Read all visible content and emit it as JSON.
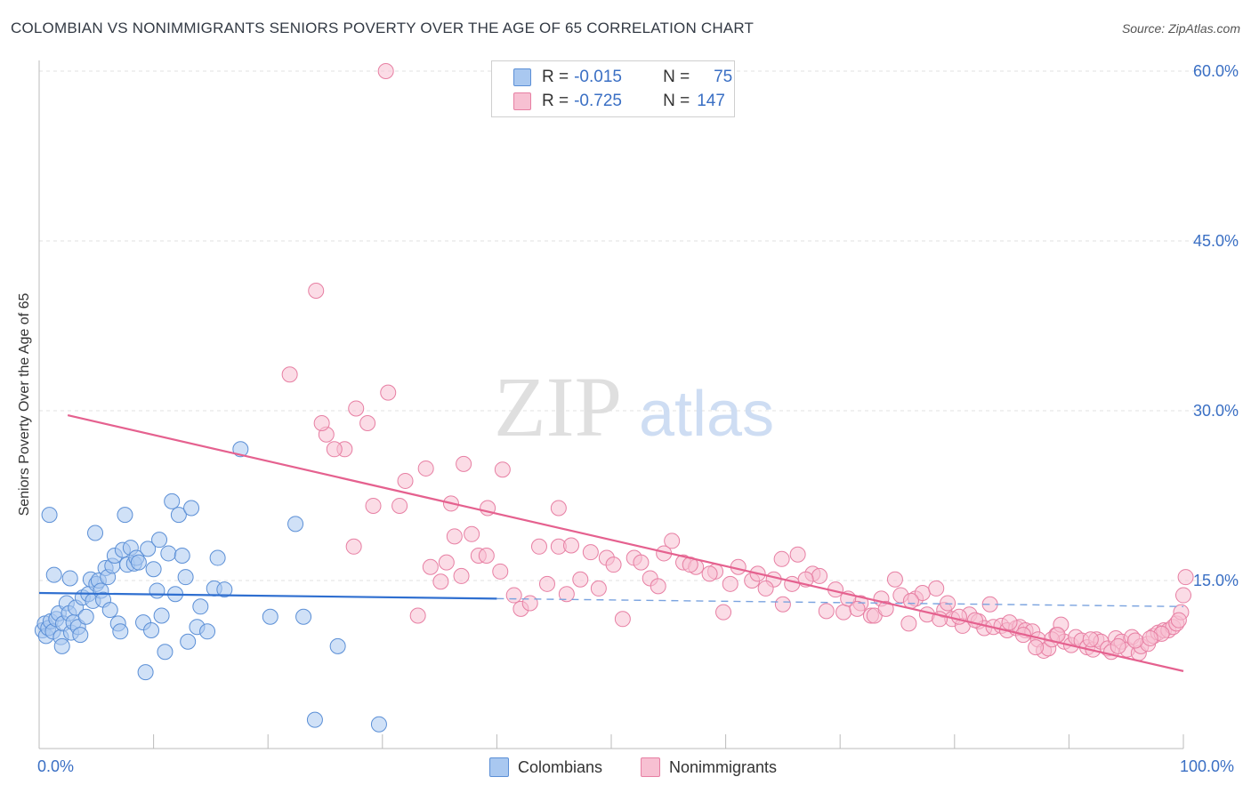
{
  "title": "COLOMBIAN VS NONIMMIGRANTS SENIORS POVERTY OVER THE AGE OF 65 CORRELATION CHART",
  "source": "Source: ZipAtlas.com",
  "watermark": {
    "zip": "ZIP",
    "atlas": "atlas"
  },
  "legend": {
    "rows": [
      {
        "r_label": "R =",
        "r_value": "-0.015",
        "n_label": "N =",
        "n_value": "75",
        "color": "#a9c8f0",
        "border": "#5b8fd6"
      },
      {
        "r_label": "R =",
        "r_value": "-0.725",
        "n_label": "N =",
        "n_value": "147",
        "color": "#f7c0d2",
        "border": "#e77fa3"
      }
    ]
  },
  "bottom_legend": {
    "series1": "Colombians",
    "series2": "Nonimmigrants"
  },
  "x_tick_labels": {
    "min": "0.0%",
    "max": "100.0%"
  },
  "chart_data": {
    "type": "scatter",
    "title": "COLOMBIAN VS NONIMMIGRANTS SENIORS POVERTY OVER THE AGE OF 65 CORRELATION CHART",
    "xlabel": "",
    "ylabel": "Seniors Poverty Over the Age of 65",
    "xlim": [
      0,
      100
    ],
    "ylim": [
      0,
      60
    ],
    "y_ticks": [
      15,
      30,
      45,
      60
    ],
    "y_tick_labels": [
      "15.0%",
      "30.0%",
      "45.0%",
      "60.0%"
    ],
    "grid": true,
    "legend_position": "top-center",
    "series": [
      {
        "name": "Colombians",
        "color": "#a9c8f0",
        "edge": "#5b8fd6",
        "trend": {
          "x": [
            0,
            40
          ],
          "y": [
            13.9,
            13.4
          ],
          "dashed_to": [
            100,
            12.7
          ]
        },
        "points": [
          [
            0.3,
            10.6
          ],
          [
            0.5,
            11.2
          ],
          [
            0.6,
            10.1
          ],
          [
            0.8,
            10.8
          ],
          [
            1.0,
            11.4
          ],
          [
            1.2,
            10.5
          ],
          [
            1.3,
            15.5
          ],
          [
            1.5,
            11.6
          ],
          [
            1.7,
            12.1
          ],
          [
            1.9,
            10.0
          ],
          [
            2.0,
            9.2
          ],
          [
            2.1,
            11.2
          ],
          [
            2.4,
            13.0
          ],
          [
            2.6,
            12.1
          ],
          [
            2.8,
            10.4
          ],
          [
            3.0,
            11.3
          ],
          [
            3.2,
            12.6
          ],
          [
            3.4,
            10.9
          ],
          [
            3.6,
            10.2
          ],
          [
            3.8,
            13.5
          ],
          [
            4.1,
            11.8
          ],
          [
            4.3,
            13.8
          ],
          [
            4.5,
            15.1
          ],
          [
            4.7,
            13.2
          ],
          [
            4.9,
            19.2
          ],
          [
            5.0,
            14.7
          ],
          [
            5.2,
            15.0
          ],
          [
            5.4,
            14.1
          ],
          [
            5.6,
            13.3
          ],
          [
            5.8,
            16.1
          ],
          [
            6.0,
            15.3
          ],
          [
            6.2,
            12.4
          ],
          [
            6.4,
            16.3
          ],
          [
            6.6,
            17.2
          ],
          [
            6.9,
            11.2
          ],
          [
            7.1,
            10.5
          ],
          [
            7.3,
            17.7
          ],
          [
            7.5,
            20.8
          ],
          [
            7.7,
            16.4
          ],
          [
            8.0,
            17.9
          ],
          [
            8.3,
            16.5
          ],
          [
            8.5,
            17.0
          ],
          [
            8.7,
            16.6
          ],
          [
            9.1,
            11.3
          ],
          [
            9.3,
            6.9
          ],
          [
            9.5,
            17.8
          ],
          [
            9.8,
            10.6
          ],
          [
            10.0,
            16.0
          ],
          [
            10.3,
            14.1
          ],
          [
            10.5,
            18.6
          ],
          [
            10.7,
            11.9
          ],
          [
            11.0,
            8.7
          ],
          [
            11.3,
            17.4
          ],
          [
            11.6,
            22.0
          ],
          [
            11.9,
            13.8
          ],
          [
            12.2,
            20.8
          ],
          [
            12.5,
            17.2
          ],
          [
            12.8,
            15.3
          ],
          [
            13.0,
            9.6
          ],
          [
            13.3,
            21.4
          ],
          [
            13.8,
            10.9
          ],
          [
            14.1,
            12.7
          ],
          [
            14.7,
            10.5
          ],
          [
            15.3,
            14.3
          ],
          [
            15.6,
            17.0
          ],
          [
            16.2,
            14.2
          ],
          [
            17.6,
            26.6
          ],
          [
            20.2,
            11.8
          ],
          [
            22.4,
            20.0
          ],
          [
            23.1,
            11.8
          ],
          [
            24.1,
            2.7
          ],
          [
            26.1,
            9.2
          ],
          [
            29.7,
            2.3
          ],
          [
            0.9,
            20.8
          ],
          [
            2.7,
            15.2
          ]
        ]
      },
      {
        "name": "Nonimmigrants",
        "color": "#f7c0d2",
        "edge": "#e77fa3",
        "trend": {
          "x": [
            2.5,
            100
          ],
          "y": [
            29.6,
            7.0
          ]
        },
        "points": [
          [
            30.3,
            60.0
          ],
          [
            24.2,
            40.6
          ],
          [
            21.9,
            33.2
          ],
          [
            30.5,
            31.6
          ],
          [
            27.7,
            30.2
          ],
          [
            25.1,
            27.9
          ],
          [
            24.7,
            28.9
          ],
          [
            26.7,
            26.6
          ],
          [
            28.7,
            28.9
          ],
          [
            25.8,
            26.6
          ],
          [
            33.8,
            24.9
          ],
          [
            32.0,
            23.8
          ],
          [
            37.1,
            25.3
          ],
          [
            40.5,
            24.8
          ],
          [
            29.2,
            21.6
          ],
          [
            31.5,
            21.6
          ],
          [
            36.0,
            21.8
          ],
          [
            39.2,
            21.4
          ],
          [
            45.4,
            21.4
          ],
          [
            36.3,
            18.9
          ],
          [
            37.8,
            19.1
          ],
          [
            27.5,
            18.0
          ],
          [
            38.4,
            17.2
          ],
          [
            39.1,
            17.2
          ],
          [
            43.7,
            18.0
          ],
          [
            45.4,
            18.0
          ],
          [
            46.5,
            18.1
          ],
          [
            48.2,
            17.5
          ],
          [
            49.6,
            17.0
          ],
          [
            52.0,
            17.0
          ],
          [
            52.6,
            16.6
          ],
          [
            55.3,
            18.5
          ],
          [
            54.6,
            17.4
          ],
          [
            56.3,
            16.6
          ],
          [
            57.4,
            16.2
          ],
          [
            59.1,
            15.8
          ],
          [
            61.1,
            16.2
          ],
          [
            62.3,
            15.0
          ],
          [
            64.2,
            15.1
          ],
          [
            64.9,
            16.9
          ],
          [
            66.3,
            17.3
          ],
          [
            67.6,
            15.6
          ],
          [
            68.2,
            15.4
          ],
          [
            69.6,
            14.2
          ],
          [
            70.3,
            12.2
          ],
          [
            71.8,
            13.0
          ],
          [
            72.7,
            11.9
          ],
          [
            73.6,
            13.4
          ],
          [
            74.8,
            15.1
          ],
          [
            75.3,
            13.7
          ],
          [
            76.0,
            11.2
          ],
          [
            76.6,
            13.4
          ],
          [
            77.2,
            13.9
          ],
          [
            78.4,
            14.3
          ],
          [
            79.1,
            12.4
          ],
          [
            79.8,
            11.6
          ],
          [
            80.7,
            11.0
          ],
          [
            81.3,
            12.0
          ],
          [
            82.1,
            11.4
          ],
          [
            82.6,
            10.8
          ],
          [
            83.1,
            12.9
          ],
          [
            83.4,
            10.9
          ],
          [
            84.1,
            11.0
          ],
          [
            84.6,
            10.6
          ],
          [
            85.4,
            10.8
          ],
          [
            85.7,
            10.9
          ],
          [
            86.2,
            10.6
          ],
          [
            86.8,
            10.5
          ],
          [
            87.3,
            9.8
          ],
          [
            87.8,
            8.8
          ],
          [
            88.2,
            9.0
          ],
          [
            88.9,
            10.2
          ],
          [
            89.3,
            11.1
          ],
          [
            89.6,
            9.6
          ],
          [
            90.2,
            9.3
          ],
          [
            90.6,
            10.0
          ],
          [
            91.1,
            9.7
          ],
          [
            91.6,
            9.1
          ],
          [
            92.1,
            8.9
          ],
          [
            92.4,
            9.8
          ],
          [
            92.8,
            9.6
          ],
          [
            93.4,
            9.0
          ],
          [
            93.7,
            8.7
          ],
          [
            94.1,
            9.9
          ],
          [
            94.6,
            9.6
          ],
          [
            95.1,
            8.9
          ],
          [
            95.5,
            10.0
          ],
          [
            96.1,
            8.6
          ],
          [
            96.3,
            9.2
          ],
          [
            96.9,
            9.4
          ],
          [
            97.4,
            10.1
          ],
          [
            97.8,
            10.4
          ],
          [
            98.3,
            10.6
          ],
          [
            98.7,
            10.6
          ],
          [
            99.1,
            10.9
          ],
          [
            99.4,
            11.2
          ],
          [
            99.8,
            12.2
          ],
          [
            100.0,
            13.7
          ],
          [
            100.2,
            15.3
          ],
          [
            98.1,
            10.3
          ],
          [
            34.2,
            16.2
          ],
          [
            35.1,
            14.9
          ],
          [
            35.6,
            16.6
          ],
          [
            36.9,
            15.4
          ],
          [
            40.3,
            15.8
          ],
          [
            41.5,
            13.7
          ],
          [
            42.1,
            12.5
          ],
          [
            42.9,
            13.0
          ],
          [
            44.4,
            14.7
          ],
          [
            46.1,
            13.8
          ],
          [
            47.3,
            15.1
          ],
          [
            48.9,
            14.3
          ],
          [
            50.2,
            16.4
          ],
          [
            51.0,
            11.6
          ],
          [
            53.4,
            15.2
          ],
          [
            54.1,
            14.5
          ],
          [
            56.9,
            16.4
          ],
          [
            58.6,
            15.6
          ],
          [
            59.8,
            12.2
          ],
          [
            60.4,
            14.7
          ],
          [
            62.8,
            15.6
          ],
          [
            63.5,
            14.3
          ],
          [
            65.0,
            12.9
          ],
          [
            65.8,
            14.7
          ],
          [
            67.0,
            15.1
          ],
          [
            68.8,
            12.3
          ],
          [
            70.7,
            13.4
          ],
          [
            71.5,
            12.5
          ],
          [
            73.0,
            11.9
          ],
          [
            74.0,
            12.5
          ],
          [
            76.2,
            13.2
          ],
          [
            77.6,
            12.0
          ],
          [
            78.7,
            11.6
          ],
          [
            79.4,
            13.0
          ],
          [
            80.4,
            11.8
          ],
          [
            81.8,
            11.5
          ],
          [
            84.8,
            11.3
          ],
          [
            86.0,
            10.2
          ],
          [
            87.1,
            9.1
          ],
          [
            88.5,
            9.8
          ],
          [
            89.0,
            10.2
          ],
          [
            91.9,
            9.8
          ],
          [
            94.3,
            9.2
          ],
          [
            95.8,
            9.7
          ],
          [
            97.1,
            9.9
          ],
          [
            99.6,
            11.5
          ],
          [
            33.1,
            11.9
          ]
        ]
      }
    ]
  }
}
